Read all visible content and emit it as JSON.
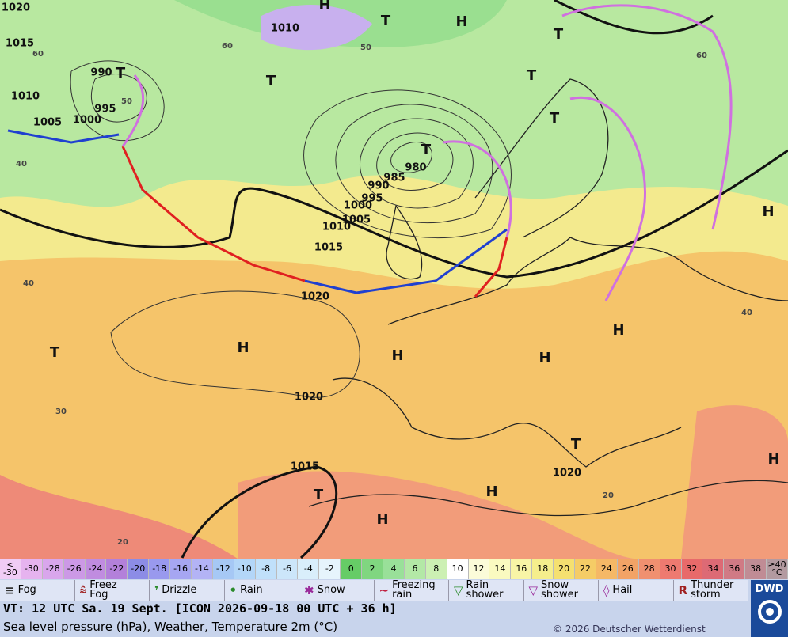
{
  "map": {
    "pressure_labels": [
      "1020",
      "1015",
      "1010",
      "1005",
      "1000",
      "995",
      "990",
      "1010",
      "980",
      "985",
      "990",
      "995",
      "1000",
      "1005",
      "1010",
      "1015",
      "1020",
      "1020",
      "1015",
      "1020"
    ],
    "pressure_systems": [
      "H",
      "T",
      "H",
      "T",
      "T",
      "T",
      "T",
      "T",
      "T",
      "H",
      "H",
      "H",
      "H",
      "H",
      "T",
      "T",
      "H",
      "T",
      "H",
      "H"
    ],
    "latitude_labels": [
      "60",
      "60",
      "50",
      "40",
      "40",
      "30",
      "20",
      "60",
      "40",
      "20",
      "50"
    ]
  },
  "temperature_scale": {
    "labels": [
      "<\n-30",
      -30,
      -28,
      -26,
      -24,
      -22,
      -20,
      -18,
      -16,
      -14,
      -12,
      -10,
      -8,
      -6,
      -4,
      -2,
      0,
      2,
      4,
      6,
      8,
      10,
      12,
      14,
      16,
      18,
      20,
      22,
      24,
      26,
      28,
      30,
      32,
      34,
      36,
      38,
      "≥40\n°C"
    ],
    "colors": [
      "#f0ccf5",
      "#e6b3ef",
      "#d9a6ec",
      "#cc99e6",
      "#c08ce0",
      "#b380da",
      "#8c8ce6",
      "#9999ee",
      "#a6a6f2",
      "#b3b3f5",
      "#a6c8f5",
      "#b3d6f8",
      "#c0e0fa",
      "#cce6fa",
      "#d9eefb",
      "#e6f4fc",
      "#66cc66",
      "#80d680",
      "#99e099",
      "#b3e8a6",
      "#ccf0b3",
      "#ffffff",
      "#fbfbd9",
      "#fafac0",
      "#f8f5a6",
      "#f5ee8c",
      "#f5e070",
      "#f5cc66",
      "#f5b866",
      "#f2a366",
      "#f09070",
      "#ee7a70",
      "#e86a6a",
      "#dd6a75",
      "#d07a85",
      "#c08c95",
      "#b39aa0"
    ]
  },
  "weather_legend": [
    "Fog",
    "Freez\nFog",
    "Drizzle",
    "Rain",
    "Snow",
    "Freezing\nrain",
    "Rain\nshower",
    "Snow\nshower",
    "Hail",
    "Thunder\nstorm"
  ],
  "logo": "DWD",
  "footer": {
    "valid_time": "VT: 12 UTC Sa.  19 Sept. [ICON 2026-09-18  00 UTC + 36 h]",
    "description": "Sea level pressure (hPa), Weather, Temperature 2m (°C)",
    "copyright": "© 2026 Deutscher Wetterdienst"
  }
}
